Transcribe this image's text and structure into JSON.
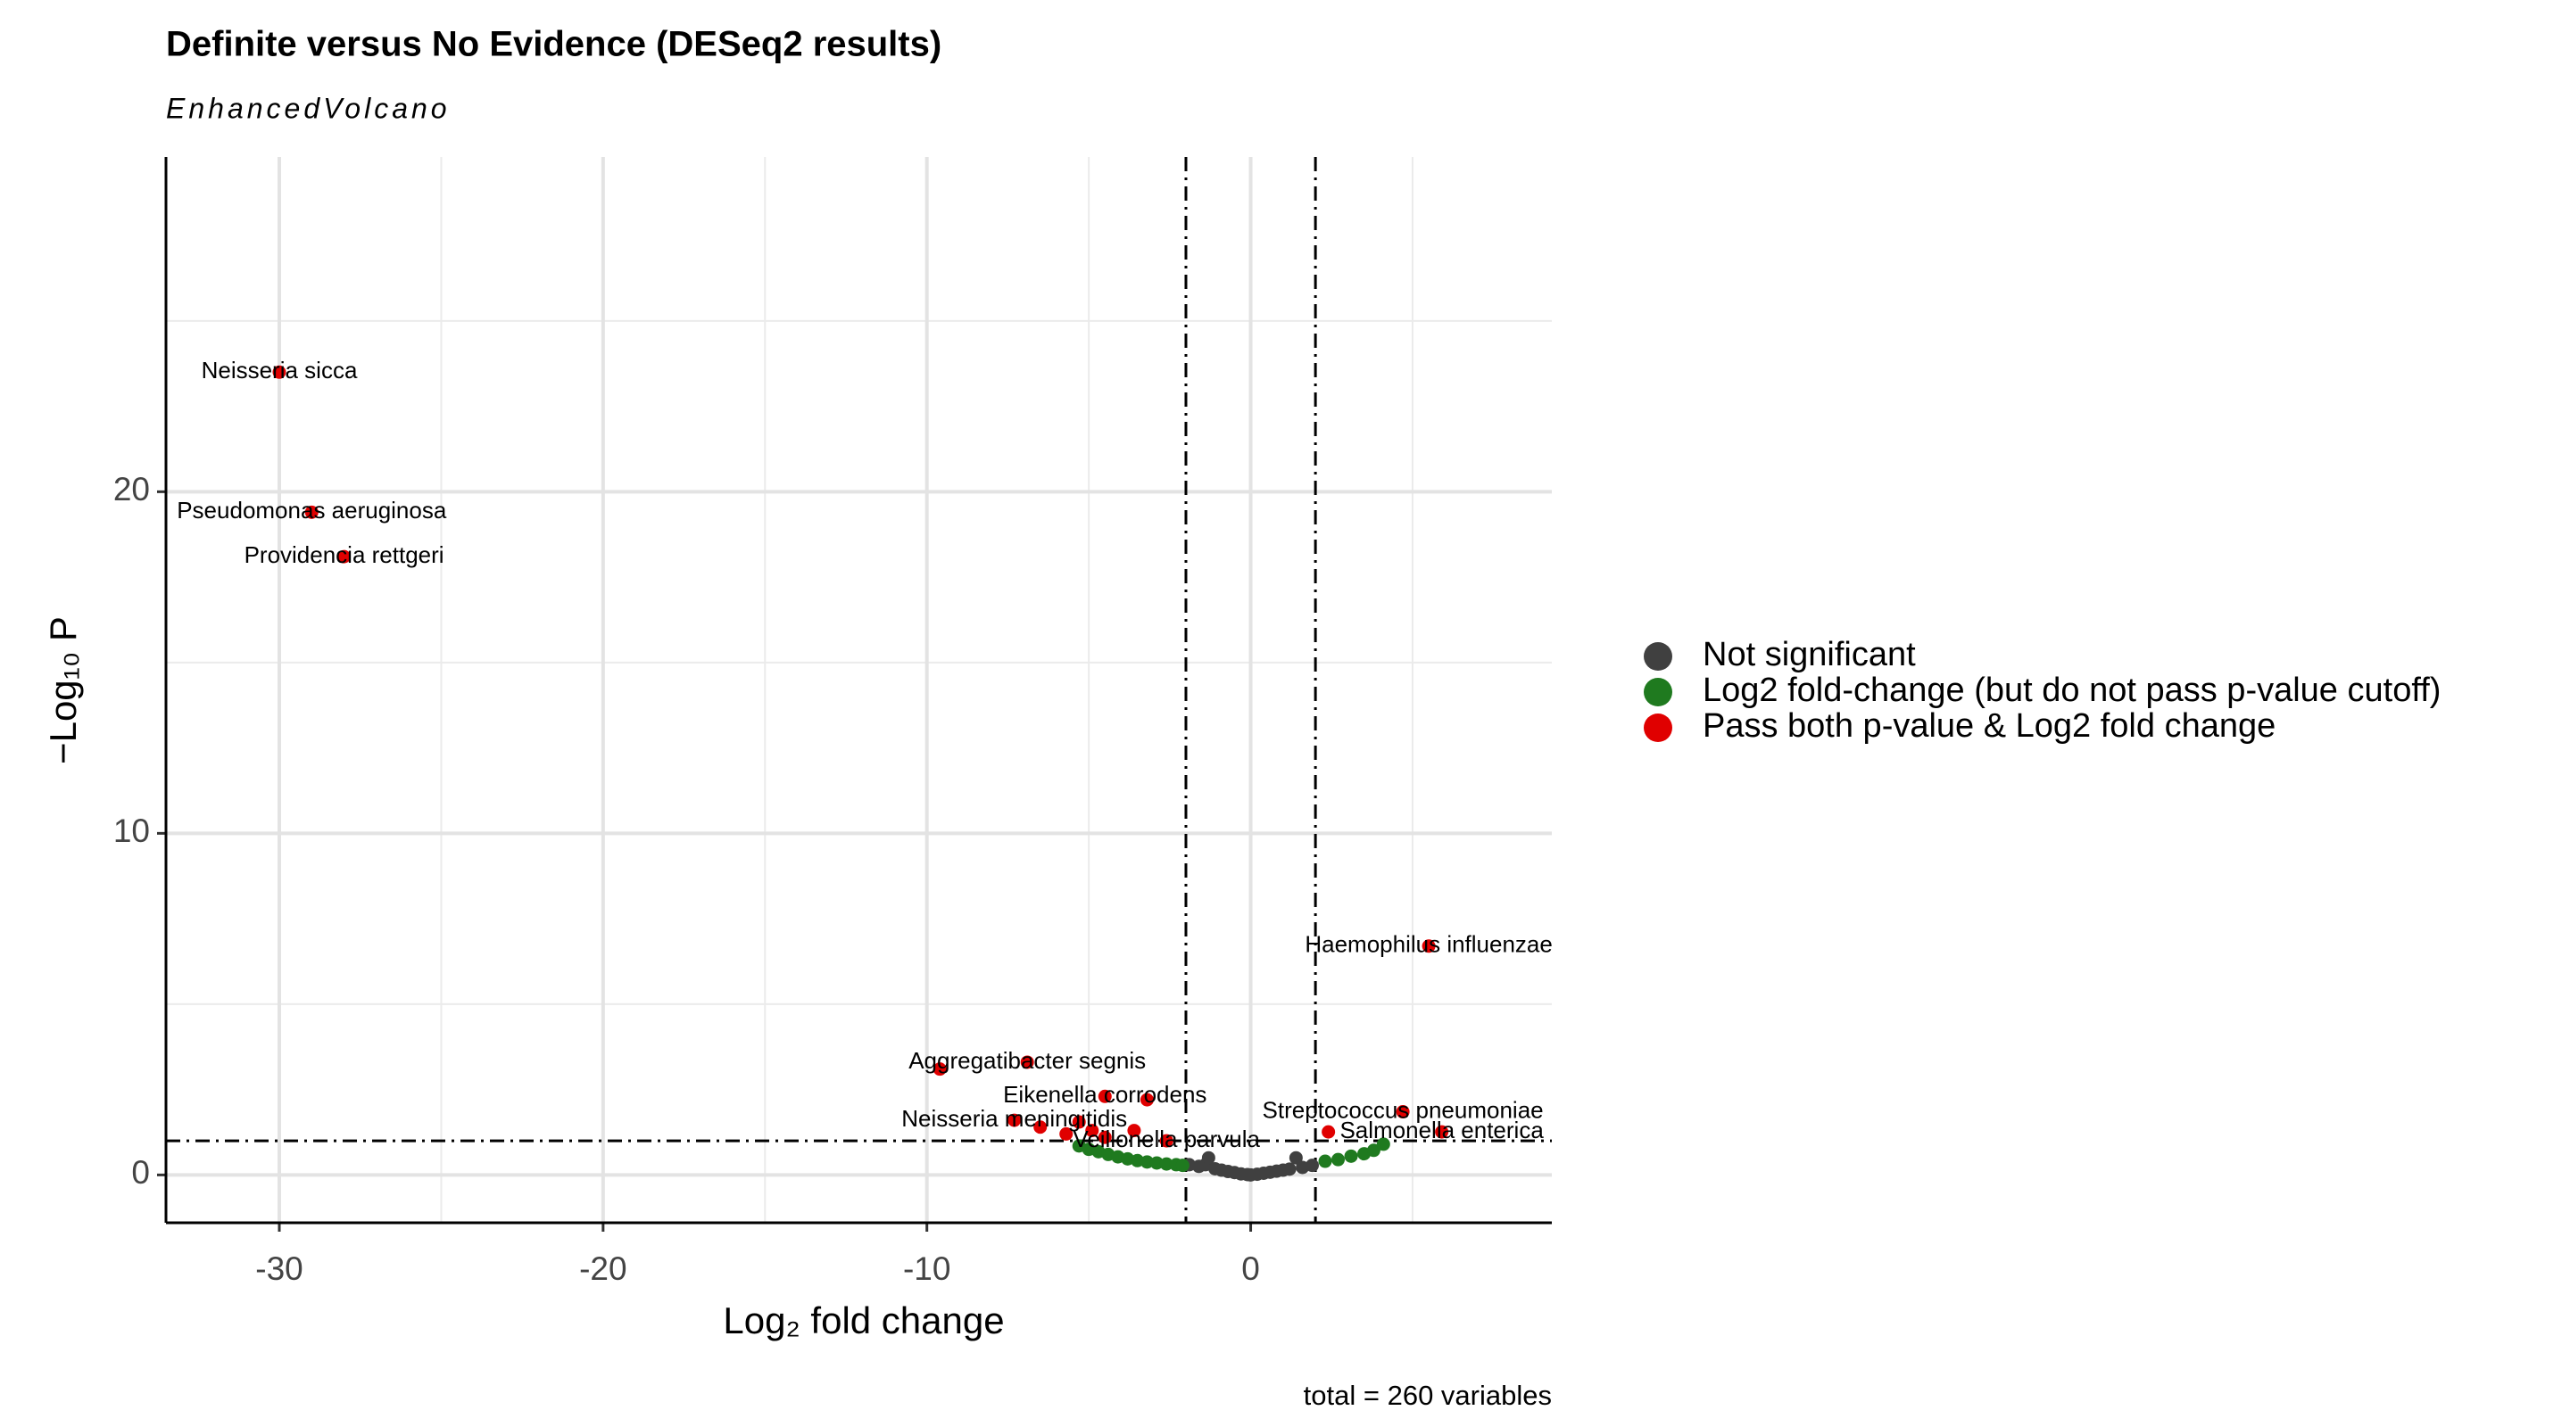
{
  "chart_data": {
    "type": "scatter",
    "title": "Definite versus No Evidence (DESeq2 results)",
    "subtitle": "EnhancedVolcano",
    "xlabel": "Log₂ fold change",
    "ylabel": "−Log₁₀ P",
    "caption": "total = 260 variables",
    "xlim": [
      -33.5,
      9.3
    ],
    "ylim": [
      -1.4,
      29.8
    ],
    "xticks": [
      -30,
      -20,
      -10,
      0
    ],
    "yticks": [
      0,
      10,
      20
    ],
    "grid": true,
    "cutoffs": {
      "x": [
        -2,
        2
      ],
      "y": 1
    },
    "legend": "right",
    "series": [
      {
        "name": "Not significant",
        "color": "#404040",
        "x": [
          -1.9,
          -1.6,
          -1.4,
          -1.3,
          -1.1,
          -0.9,
          -0.7,
          -0.5,
          -0.3,
          -0.1,
          0,
          0.2,
          0.4,
          0.6,
          0.8,
          1.0,
          1.2,
          1.4,
          1.6,
          1.9
        ],
        "y": [
          0.3,
          0.25,
          0.3,
          0.5,
          0.18,
          0.14,
          0.1,
          0.07,
          0.03,
          0.01,
          0,
          0.02,
          0.05,
          0.08,
          0.11,
          0.14,
          0.17,
          0.5,
          0.22,
          0.28
        ]
      },
      {
        "name": "Log2 fold-change (but do not pass p-value cutoff)",
        "color": "#1f7a1f",
        "x": [
          -5.3,
          -5,
          -4.7,
          -4.4,
          -4.1,
          -3.8,
          -3.5,
          -3.2,
          -2.9,
          -2.6,
          -2.3,
          -2.1,
          2.3,
          2.7,
          3.1,
          3.5,
          3.8,
          4.1
        ],
        "y": [
          0.85,
          0.75,
          0.68,
          0.6,
          0.53,
          0.47,
          0.42,
          0.38,
          0.35,
          0.32,
          0.3,
          0.28,
          0.4,
          0.45,
          0.55,
          0.62,
          0.72,
          0.9
        ]
      },
      {
        "name": "Pass both p-value & Log2 fold change",
        "color": "#e00000",
        "x": [
          -30,
          -29,
          -28,
          5.5,
          -9.6,
          -6.9,
          -4.5,
          -3.2,
          -7.3,
          -6.5,
          -5.7,
          -5.3,
          -4.9,
          -4.5,
          -3.6,
          -2.6,
          4.7,
          5.9,
          2.4
        ],
        "y": [
          23.5,
          19.4,
          18.1,
          6.7,
          3.1,
          3.3,
          2.3,
          2.2,
          1.6,
          1.4,
          1.2,
          1.55,
          1.3,
          1.1,
          1.3,
          1.0,
          1.85,
          1.26,
          1.26
        ],
        "labels": [
          "Neisseria sicca",
          "Pseudomonas aeruginosa",
          "Providencia rettgeri",
          "Haemophilus influenzae",
          null,
          "Aggregatibacter segnis",
          "Eikenella corrodens",
          null,
          "Neisseria meningitidis",
          null,
          null,
          null,
          null,
          null,
          null,
          "Veillonella parvula",
          "Streptococcus pneumoniae",
          "Salmonella enterica",
          null
        ]
      }
    ]
  }
}
